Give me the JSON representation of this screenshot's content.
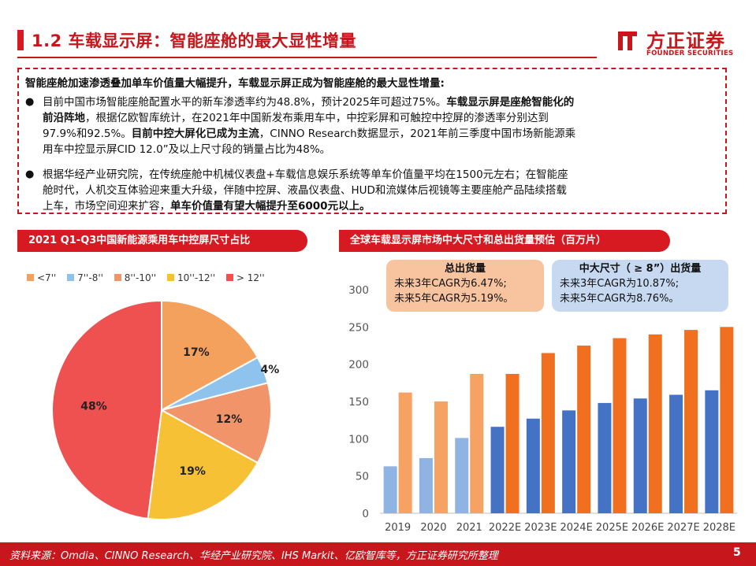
{
  "header": {
    "title": "1.2 车载显示屏：智能座舱的最大显性增量",
    "logo_cn": "方正证券",
    "logo_en": "FOUNDER SECURITIES"
  },
  "summary": {
    "headline": "智能座舱加速渗透叠加单车价值量大幅提升，车载显示屏正成为智能座舱的最大显性增量:",
    "bullet_mark": "●",
    "b1": {
      "l1a": "目前中国市场智能座舱配置水平的新车渗透率约为48.8%，预计2025年可超过75%。",
      "l1b": "车载显示屏是座舱智能化的",
      "l2a": "前沿阵地",
      "l2b": "，根据亿欧智库统计，在2021年中国新发布乘用车中，中控彩屏和可触控中控屏的渗透率分别达到",
      "l3a": "97.9%和92.5%。",
      "l3b": "目前中控大屏化已成为主流",
      "l3c": "，CINNO Research数据显示，2021年前三季度中国市场新能源乘",
      "l4": "用车中控显示屏CID 12.0”及以上尺寸段的销量占比为48%。"
    },
    "b2": {
      "l1": "根据华经产业研究院，在传统座舱中机械仪表盘+车载信息娱乐系统等单车价值量平均在1500元左右；在智能座",
      "l2": "舱时代，人机交互体验迎来重大升级，伴随中控屏、液晶仪表盘、HUD和流媒体后视镜等主要座舱产品陆续搭载",
      "l3a": "上车，市场空间迎来扩容，",
      "l3b": "单车价值量有望大幅提升至6000元以上。"
    }
  },
  "left_chart_title": "2021 Q1-Q3中国新能源乘用车中控屏尺寸占比",
  "right_chart_title": "全球车载显示屏市场中大尺寸和总出货量预估（百万片）",
  "notes": {
    "total": {
      "title": "总出货量",
      "l1": "未来3年CAGR为6.47%;",
      "l2": "未来5年CAGR为5.19%。"
    },
    "large": {
      "title": "中大尺寸（ ≥ 8”）出货量",
      "l1": "未来3年CAGR为10.87%;",
      "l2": "未来5年CAGR为8.76%。"
    }
  },
  "chart_data": [
    {
      "type": "pie",
      "title": "2021 Q1-Q3中国新能源乘用车中控屏尺寸占比",
      "legend_position": "top",
      "slices": [
        {
          "label": "<7''",
          "value": 0,
          "label_text": "",
          "color": "#f4a15d"
        },
        {
          "label": "7''-8''",
          "value": 4,
          "label_text": "4%",
          "color": "#8ec3ee"
        },
        {
          "label": "8''-10''",
          "value": 12,
          "label_text": "12%",
          "color": "#f1946a"
        },
        {
          "label": "10''-12''",
          "value": 19,
          "label_text": "19%",
          "color": "#f6c134"
        },
        {
          "label": "> 12''",
          "value": 48,
          "label_text": "48%",
          "color": "#ef5050"
        },
        {
          "label": "",
          "value": 17,
          "label_text": "17%",
          "color": "#f4a15d"
        }
      ]
    },
    {
      "type": "bar",
      "title": "全球车载显示屏市场中大尺寸和总出货量预估（百万片）",
      "categories": [
        "2019",
        "2020",
        "2021",
        "2022E",
        "2023E",
        "2024E",
        "2025E",
        "2026E",
        "2027E",
        "2028E"
      ],
      "ylim": [
        0,
        300
      ],
      "yticks": [
        "0",
        "50",
        "100",
        "150",
        "200",
        "250",
        "300"
      ],
      "grid": false,
      "series": [
        {
          "values": [
            63,
            74,
            101,
            116,
            127,
            138,
            148,
            154,
            159,
            165
          ],
          "colors": [
            "#8fb4e3",
            "#8fb4e3",
            "#8fb4e3",
            "#4472c4",
            "#4472c4",
            "#4472c4",
            "#4472c4",
            "#4472c4",
            "#4472c4",
            "#4472c4"
          ]
        },
        {
          "values": [
            162,
            150,
            187,
            187,
            215,
            225,
            235,
            240,
            246,
            250
          ],
          "colors": [
            "#f5a263",
            "#f5a263",
            "#f5a263",
            "#f07020",
            "#f07020",
            "#f07020",
            "#f07020",
            "#f07020",
            "#f07020",
            "#f07020"
          ]
        }
      ]
    }
  ],
  "footer": {
    "source": "资料来源：Omdia、CINNO Research、华经产业研究院、IHS Markit、亿欧智库等，方正证券研究所整理",
    "page": "5"
  }
}
